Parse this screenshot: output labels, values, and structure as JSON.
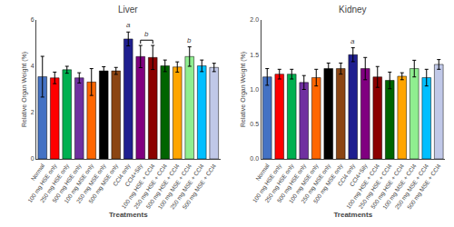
{
  "chart_data": [
    {
      "type": "bar",
      "title": "Liver",
      "xlabel": "Treatments",
      "ylabel": "Relative Organ Weight (%)",
      "categories": [
        "Normal",
        "100 mg HSE only",
        "250 mg HSE only",
        "500 mg HSE only",
        "100 mg MSE only",
        "250 mg MSE only",
        "500 mg MSE only",
        "CCl4 only",
        "CCl4+Sily",
        "100 mg HSE + CCl4",
        "250 mg HSE + CCl4",
        "500 mg HSE + CCl4",
        "100 mg MSE + CCl4",
        "250 mg MSE + CCl4",
        "500 mg MSE + CCl4"
      ],
      "values": [
        3.55,
        3.5,
        3.85,
        3.5,
        3.32,
        3.8,
        3.8,
        5.18,
        4.42,
        4.38,
        4.02,
        3.97,
        4.42,
        4.02,
        3.95
      ],
      "errors": [
        0.88,
        0.25,
        0.15,
        0.22,
        0.58,
        0.18,
        0.15,
        0.3,
        0.48,
        0.52,
        0.25,
        0.22,
        0.42,
        0.25,
        0.18
      ],
      "colors": [
        "#4472C4",
        "#FF0000",
        "#00B050",
        "#7030A0",
        "#FF6600",
        "#000000",
        "#8B4513",
        "#1F1F8F",
        "#800080",
        "#8B0000",
        "#006400",
        "#FFA500",
        "#90EE90",
        "#00BFFF",
        "#C0C8E8"
      ],
      "ylim": [
        0,
        6
      ],
      "yticks": [
        0,
        2,
        4,
        6
      ],
      "grid": false,
      "annotations": [
        {
          "text": "a",
          "category": "CCl4 only"
        },
        {
          "text": "b",
          "categories": [
            "CCl4+Sily",
            "100 mg HSE + CCl4"
          ]
        },
        {
          "text": "b",
          "category": "100 mg MSE + CCl4"
        }
      ]
    },
    {
      "type": "bar",
      "title": "Kidney",
      "xlabel": "Treatments",
      "ylabel": "Relative Organ Weight (%)",
      "categories": [
        "Normal",
        "100 mg HSE only",
        "250 mg HSE only",
        "500 mg HSE only",
        "100 mg MSE only",
        "250 mg MSE only",
        "500 mg MSE only",
        "CCl4 only",
        "CCl4+Sily",
        "100 mg HSE + CCl4",
        "250 mg HSE + CCl4",
        "500 mg HSE + CCl4",
        "100 mg MSE + CCl4",
        "250 mg MSE + CCl4",
        "500 mg MSE + CCl4"
      ],
      "values": [
        1.18,
        1.22,
        1.22,
        1.1,
        1.17,
        1.3,
        1.3,
        1.5,
        1.3,
        1.18,
        1.13,
        1.19,
        1.3,
        1.17,
        1.36
      ],
      "errors": [
        0.12,
        0.07,
        0.07,
        0.1,
        0.12,
        0.08,
        0.08,
        0.1,
        0.16,
        0.15,
        0.12,
        0.05,
        0.12,
        0.12,
        0.07
      ],
      "colors": [
        "#4472C4",
        "#FF0000",
        "#00B050",
        "#7030A0",
        "#FF6600",
        "#000000",
        "#8B4513",
        "#1F1F8F",
        "#800080",
        "#8B0000",
        "#006400",
        "#FFA500",
        "#90EE90",
        "#00BFFF",
        "#C0C8E8"
      ],
      "ylim": [
        0,
        2.0
      ],
      "yticks": [
        {
          "value": 0,
          "label": "0.0"
        },
        0.5,
        {
          "value": 1.0,
          "label": "1.0"
        },
        1.5,
        {
          "value": 2.0,
          "label": "2.0"
        }
      ],
      "grid": false,
      "annotations": [
        {
          "text": "a",
          "category": "CCl4 only"
        }
      ]
    }
  ]
}
